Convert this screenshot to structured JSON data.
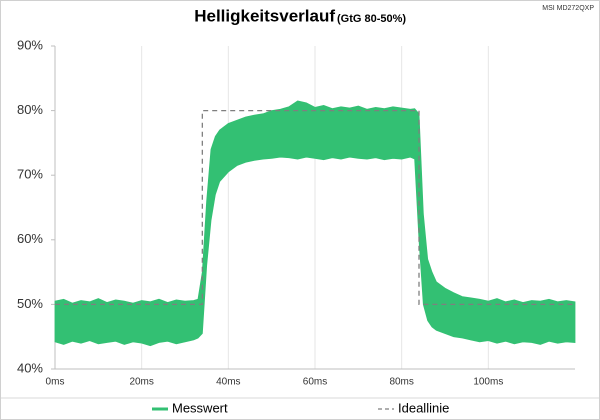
{
  "chart_data": {
    "type": "band-line",
    "title": "Helligkeitsverlauf",
    "subtitle": "(GtG 80-50%)",
    "annotation": "MSI MD272QXP",
    "xlim": [
      0,
      120
    ],
    "xticks": [
      {
        "value": 0,
        "label": "0ms"
      },
      {
        "value": 20,
        "label": "20ms"
      },
      {
        "value": 40,
        "label": "40ms"
      },
      {
        "value": 60,
        "label": "60ms"
      },
      {
        "value": 80,
        "label": "80ms"
      },
      {
        "value": 100,
        "label": "100ms"
      }
    ],
    "ylim": [
      40,
      90
    ],
    "yticks": [
      {
        "value": 40,
        "label": "40%"
      },
      {
        "value": 50,
        "label": "50%"
      },
      {
        "value": 60,
        "label": "60%"
      },
      {
        "value": 70,
        "label": "70%"
      },
      {
        "value": 80,
        "label": "80%"
      },
      {
        "value": 90,
        "label": "90%"
      }
    ],
    "grid": true,
    "series": [
      {
        "name": "Messwert",
        "color": "#33c073",
        "x": [
          0,
          2,
          4,
          6,
          8,
          10,
          12,
          14,
          16,
          18,
          20,
          22,
          24,
          26,
          28,
          30,
          32,
          33,
          34,
          35,
          36,
          37,
          38,
          40,
          42,
          44,
          46,
          48,
          50,
          52,
          54,
          56,
          58,
          60,
          62,
          64,
          66,
          68,
          70,
          72,
          74,
          76,
          78,
          80,
          82,
          83,
          84,
          85,
          86,
          87,
          88,
          90,
          92,
          94,
          96,
          98,
          100,
          102,
          104,
          106,
          108,
          110,
          112,
          114,
          116,
          118,
          120
        ],
        "values_high": [
          50.5,
          50.8,
          50.2,
          50.6,
          50.4,
          50.9,
          50.3,
          50.7,
          50.5,
          50.2,
          50.6,
          50.4,
          50.8,
          50.3,
          50.7,
          50.5,
          50.6,
          50.8,
          55,
          66,
          74,
          76,
          77,
          78,
          78.5,
          79,
          79.3,
          79.5,
          80,
          80.2,
          80.6,
          81.5,
          81.2,
          80.5,
          80.8,
          80.3,
          80.6,
          80.4,
          80.7,
          80.2,
          80.5,
          80.3,
          80.6,
          80.4,
          80.2,
          80.3,
          79.5,
          64,
          57,
          55,
          53.5,
          52.5,
          51.8,
          51.2,
          51,
          50.8,
          50.5,
          50.9,
          50.4,
          50.7,
          50.3,
          50.6,
          50.5,
          50.8,
          50.4,
          50.6,
          50.4
        ],
        "values_low": [
          44.2,
          43.8,
          44.3,
          44,
          44.4,
          43.9,
          44.1,
          44.3,
          43.8,
          44.2,
          44,
          43.6,
          44.1,
          44.3,
          43.9,
          44.2,
          44.5,
          44.8,
          45.5,
          56,
          63,
          67,
          69,
          70.5,
          71.5,
          72,
          72.3,
          72.5,
          72.6,
          72.8,
          72.7,
          72.5,
          72.8,
          72.6,
          72.4,
          72.7,
          72.5,
          72.8,
          72.6,
          72.5,
          72.7,
          72.4,
          72.6,
          72.5,
          72.8,
          72.5,
          60,
          50,
          47.5,
          46.5,
          46,
          45.5,
          45,
          44.8,
          44.5,
          44.2,
          44.4,
          44,
          44.3,
          43.9,
          44.2,
          44.1,
          43.8,
          44.3,
          44,
          44.2,
          44.1
        ]
      },
      {
        "name": "Ideallinie",
        "color": "#7f7f7f",
        "dashed": true,
        "x": [
          0,
          34,
          34,
          84,
          84,
          120
        ],
        "values": [
          50,
          50,
          80,
          80,
          50,
          50
        ]
      }
    ]
  }
}
